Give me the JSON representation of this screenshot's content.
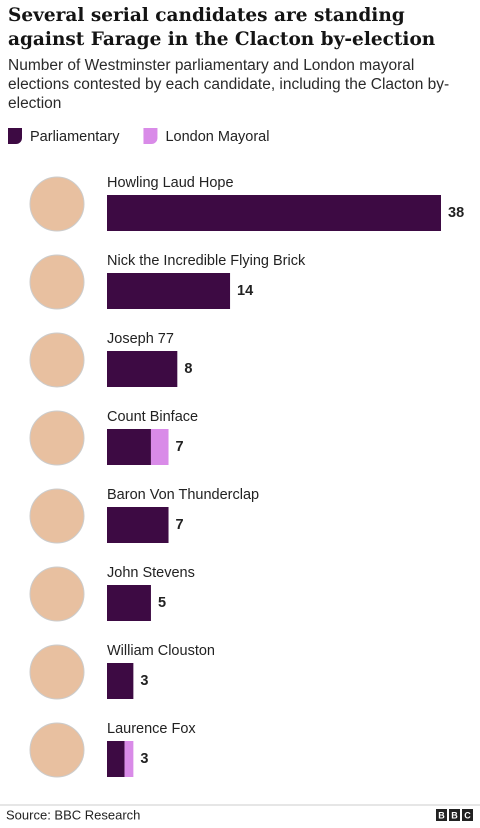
{
  "chart_data": {
    "type": "stacked-bar",
    "title": "Several serial candidates are standing against Farage in the Clacton by-election",
    "subtitle": "Number of Westminster parliamentary and London mayoral elections contested by each candidate, including the Clacton by-election",
    "categories": [
      "Howling Laud Hope",
      "Nick the Incredible Flying Brick",
      "Joseph 77",
      "Count Binface",
      "Baron Von Thunderclap",
      "John Stevens",
      "William Clouston",
      "Laurence Fox"
    ],
    "series": [
      {
        "name": "Parliamentary",
        "color": "#3d0a43",
        "values": [
          38,
          14,
          8,
          5,
          7,
          5,
          3,
          2
        ]
      },
      {
        "name": "London Mayoral",
        "color": "#d98be8",
        "values": [
          0,
          0,
          0,
          2,
          0,
          0,
          0,
          1
        ]
      }
    ],
    "totals": [
      38,
      14,
      8,
      7,
      7,
      5,
      3,
      3
    ],
    "source": "Source: BBC Research",
    "logo": [
      "B",
      "B",
      "C"
    ]
  }
}
